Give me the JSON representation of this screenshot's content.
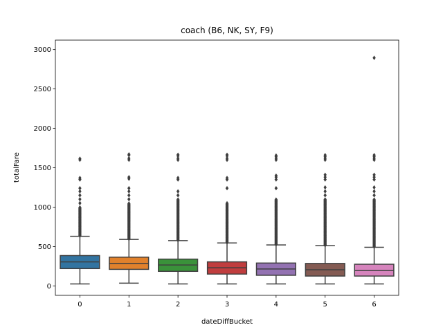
{
  "chart_data": {
    "type": "box",
    "title": "coach (B6, NK, SY, F9)",
    "xlabel": "dateDiffBucket",
    "ylabel": "totalFare",
    "ylim": [
      -120,
      3120
    ],
    "yticks": [
      0,
      500,
      1000,
      1500,
      2000,
      2500,
      3000
    ],
    "grid": false,
    "categories": [
      "0",
      "1",
      "2",
      "3",
      "4",
      "5",
      "6"
    ],
    "colors": [
      "#3274a1",
      "#e1812c",
      "#3a923a",
      "#c03d3e",
      "#9372b2",
      "#845b53",
      "#d684bd"
    ],
    "boxes": [
      {
        "category": "0",
        "whisker_low": 25,
        "q1": 220,
        "median": 305,
        "q3": 385,
        "whisker_high": 630,
        "outliers_dense_range": [
          630,
          1000
        ],
        "outliers": [
          1050,
          1100,
          1150,
          1200,
          1240,
          1350,
          1370,
          1600,
          1615
        ]
      },
      {
        "category": "1",
        "whisker_low": 35,
        "q1": 210,
        "median": 285,
        "q3": 365,
        "whisker_high": 590,
        "outliers_dense_range": [
          590,
          1050
        ],
        "outliers": [
          1100,
          1150,
          1200,
          1240,
          1360,
          1380,
          1600,
          1620,
          1660,
          1670
        ]
      },
      {
        "category": "2",
        "whisker_low": 25,
        "q1": 185,
        "median": 265,
        "q3": 340,
        "whisker_high": 575,
        "outliers_dense_range": [
          575,
          1100
        ],
        "outliers": [
          1150,
          1200,
          1350,
          1370,
          1600,
          1620,
          1650,
          1665
        ]
      },
      {
        "category": "3",
        "whisker_low": 25,
        "q1": 150,
        "median": 230,
        "q3": 305,
        "whisker_high": 545,
        "outliers_dense_range": [
          545,
          1050
        ],
        "outliers": [
          1240,
          1350,
          1370,
          1600,
          1620,
          1650,
          1665
        ]
      },
      {
        "category": "4",
        "whisker_low": 25,
        "q1": 135,
        "median": 215,
        "q3": 290,
        "whisker_high": 520,
        "outliers_dense_range": [
          520,
          1100
        ],
        "outliers": [
          1240,
          1350,
          1380,
          1400,
          1600,
          1620,
          1640,
          1655
        ]
      },
      {
        "category": "5",
        "whisker_low": 25,
        "q1": 125,
        "median": 205,
        "q3": 285,
        "whisker_high": 510,
        "outliers_dense_range": [
          510,
          1100
        ],
        "outliers": [
          1150,
          1200,
          1250,
          1350,
          1380,
          1410,
          1600,
          1620,
          1640,
          1660
        ]
      },
      {
        "category": "6",
        "whisker_low": 25,
        "q1": 125,
        "median": 195,
        "q3": 275,
        "whisker_high": 490,
        "outliers_dense_range": [
          490,
          1100
        ],
        "outliers": [
          1150,
          1200,
          1250,
          1350,
          1380,
          1410,
          1600,
          1620,
          1640,
          1660,
          2895
        ]
      }
    ]
  }
}
